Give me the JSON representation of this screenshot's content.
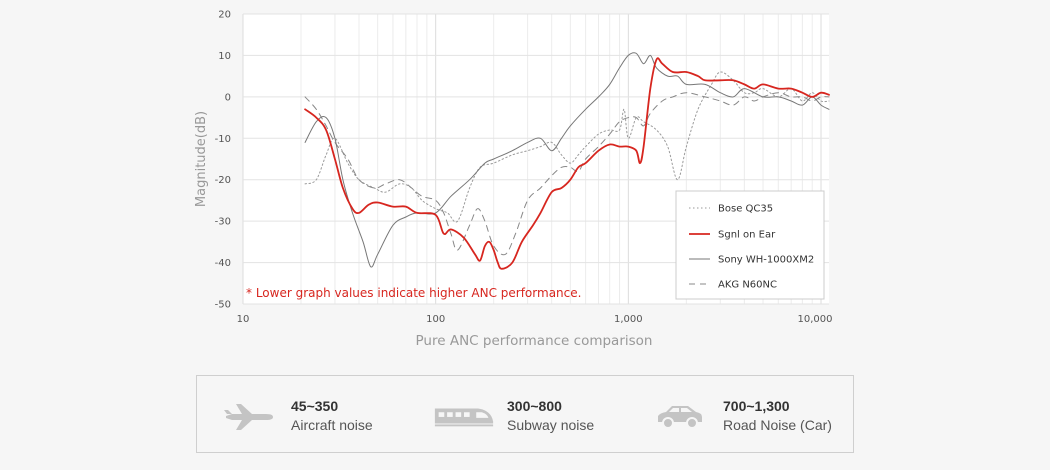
{
  "chart_data": {
    "type": "line",
    "title": "",
    "caption": "Pure ANC performance comparison",
    "xlabel": "",
    "ylabel": "Magnitude(dB)",
    "xscale": "log",
    "xlim": [
      10,
      11000
    ],
    "ylim": [
      -50,
      20
    ],
    "y_ticks": [
      20,
      10,
      0,
      -10,
      -20,
      -30,
      -40,
      -50
    ],
    "x_ticks": [
      10,
      100,
      1000,
      10000
    ],
    "x_tick_labels": [
      "10",
      "100",
      "1,000",
      "10,000"
    ],
    "grid": true,
    "legend_position": "bottom-right",
    "annotation": "* Lower graph values indicate higher ANC performance.",
    "series": [
      {
        "name": "Bose QC35",
        "style": "dotted",
        "color": "#9a9a9a",
        "points": [
          [
            21,
            -21
          ],
          [
            24,
            -20
          ],
          [
            27,
            -14
          ],
          [
            30,
            -10
          ],
          [
            35,
            -16
          ],
          [
            40,
            -20
          ],
          [
            48,
            -22
          ],
          [
            55,
            -23
          ],
          [
            65,
            -21
          ],
          [
            75,
            -22
          ],
          [
            85,
            -25
          ],
          [
            100,
            -27
          ],
          [
            115,
            -28
          ],
          [
            130,
            -30
          ],
          [
            150,
            -22
          ],
          [
            170,
            -17
          ],
          [
            200,
            -16
          ],
          [
            250,
            -14
          ],
          [
            300,
            -13
          ],
          [
            350,
            -12
          ],
          [
            400,
            -11
          ],
          [
            450,
            -14
          ],
          [
            500,
            -16
          ],
          [
            550,
            -14
          ],
          [
            600,
            -12
          ],
          [
            700,
            -9
          ],
          [
            800,
            -8
          ],
          [
            900,
            -8
          ],
          [
            950,
            -3
          ],
          [
            1000,
            -10
          ],
          [
            1100,
            -5
          ],
          [
            1200,
            -6
          ],
          [
            1400,
            -8
          ],
          [
            1600,
            -12
          ],
          [
            1800,
            -20
          ],
          [
            2000,
            -12
          ],
          [
            2300,
            -3
          ],
          [
            2700,
            3
          ],
          [
            3000,
            6
          ],
          [
            3500,
            4
          ],
          [
            4000,
            1
          ],
          [
            4500,
            1
          ],
          [
            5000,
            2
          ],
          [
            6000,
            0
          ],
          [
            7000,
            2
          ],
          [
            8000,
            -1
          ],
          [
            9000,
            1
          ],
          [
            10000,
            -1
          ],
          [
            11000,
            -1
          ]
        ]
      },
      {
        "name": "Sgnl on Ear",
        "style": "solid",
        "color": "#d7261f",
        "points": [
          [
            21,
            -3
          ],
          [
            24,
            -5
          ],
          [
            27,
            -8
          ],
          [
            30,
            -15
          ],
          [
            33,
            -22
          ],
          [
            37,
            -27
          ],
          [
            40,
            -28
          ],
          [
            45,
            -26
          ],
          [
            50,
            -25.5
          ],
          [
            60,
            -26.5
          ],
          [
            70,
            -26.5
          ],
          [
            80,
            -28
          ],
          [
            100,
            -28.5
          ],
          [
            110,
            -33
          ],
          [
            120,
            -32
          ],
          [
            140,
            -34
          ],
          [
            160,
            -38
          ],
          [
            170,
            -39.5
          ],
          [
            180,
            -36
          ],
          [
            190,
            -35
          ],
          [
            200,
            -37
          ],
          [
            210,
            -40
          ],
          [
            220,
            -41.5
          ],
          [
            250,
            -40
          ],
          [
            280,
            -35
          ],
          [
            320,
            -31
          ],
          [
            350,
            -28
          ],
          [
            400,
            -23
          ],
          [
            450,
            -22
          ],
          [
            500,
            -20
          ],
          [
            550,
            -17
          ],
          [
            600,
            -16
          ],
          [
            700,
            -13
          ],
          [
            800,
            -11.5
          ],
          [
            900,
            -12
          ],
          [
            1000,
            -12
          ],
          [
            1100,
            -13
          ],
          [
            1150,
            -16
          ],
          [
            1200,
            -12
          ],
          [
            1300,
            2
          ],
          [
            1400,
            9
          ],
          [
            1500,
            8
          ],
          [
            1700,
            6
          ],
          [
            2000,
            6
          ],
          [
            2300,
            5
          ],
          [
            2500,
            4
          ],
          [
            3000,
            4
          ],
          [
            3500,
            4
          ],
          [
            4000,
            3
          ],
          [
            4500,
            2
          ],
          [
            5000,
            3
          ],
          [
            6000,
            2
          ],
          [
            7000,
            2
          ],
          [
            8000,
            1
          ],
          [
            9000,
            0
          ],
          [
            10000,
            1
          ],
          [
            11000,
            0.5
          ]
        ]
      },
      {
        "name": "Sony WH-1000XM2",
        "style": "solid",
        "color": "#777777",
        "points": [
          [
            21,
            -11
          ],
          [
            24,
            -6
          ],
          [
            27,
            -5
          ],
          [
            30,
            -10
          ],
          [
            33,
            -20
          ],
          [
            37,
            -28
          ],
          [
            42,
            -35
          ],
          [
            46,
            -41
          ],
          [
            50,
            -38
          ],
          [
            60,
            -31
          ],
          [
            70,
            -29
          ],
          [
            80,
            -28
          ],
          [
            100,
            -28
          ],
          [
            120,
            -24
          ],
          [
            150,
            -20
          ],
          [
            180,
            -16
          ],
          [
            200,
            -15
          ],
          [
            250,
            -13
          ],
          [
            300,
            -11
          ],
          [
            350,
            -10
          ],
          [
            400,
            -13
          ],
          [
            450,
            -10
          ],
          [
            500,
            -7
          ],
          [
            600,
            -3
          ],
          [
            700,
            0
          ],
          [
            800,
            3
          ],
          [
            900,
            7
          ],
          [
            1000,
            10
          ],
          [
            1100,
            10.5
          ],
          [
            1200,
            8
          ],
          [
            1300,
            10
          ],
          [
            1400,
            7
          ],
          [
            1600,
            5
          ],
          [
            1800,
            5
          ],
          [
            2000,
            3
          ],
          [
            2500,
            3
          ],
          [
            3000,
            1
          ],
          [
            3500,
            0
          ],
          [
            4000,
            2
          ],
          [
            5000,
            0
          ],
          [
            6000,
            0
          ],
          [
            7000,
            -1
          ],
          [
            8000,
            -2
          ],
          [
            9000,
            0
          ],
          [
            10000,
            -2
          ],
          [
            11000,
            -3
          ]
        ]
      },
      {
        "name": "AKG N60NC",
        "style": "dashed",
        "color": "#888888",
        "points": [
          [
            21,
            0
          ],
          [
            24,
            -3
          ],
          [
            27,
            -7
          ],
          [
            30,
            -11
          ],
          [
            35,
            -15
          ],
          [
            40,
            -20
          ],
          [
            48,
            -22
          ],
          [
            55,
            -21
          ],
          [
            65,
            -20
          ],
          [
            75,
            -22
          ],
          [
            85,
            -24
          ],
          [
            100,
            -25
          ],
          [
            110,
            -28
          ],
          [
            120,
            -33
          ],
          [
            130,
            -37
          ],
          [
            150,
            -31
          ],
          [
            165,
            -27
          ],
          [
            180,
            -30
          ],
          [
            200,
            -36
          ],
          [
            230,
            -38
          ],
          [
            260,
            -33
          ],
          [
            300,
            -25
          ],
          [
            350,
            -22
          ],
          [
            400,
            -19
          ],
          [
            450,
            -17
          ],
          [
            500,
            -17
          ],
          [
            550,
            -18
          ],
          [
            600,
            -15
          ],
          [
            700,
            -12
          ],
          [
            800,
            -9
          ],
          [
            900,
            -6
          ],
          [
            1000,
            -5
          ],
          [
            1100,
            -5
          ],
          [
            1200,
            -7
          ],
          [
            1300,
            -4
          ],
          [
            1500,
            -1
          ],
          [
            1700,
            0
          ],
          [
            2000,
            1
          ],
          [
            2500,
            0
          ],
          [
            3000,
            -1
          ],
          [
            3500,
            -2
          ],
          [
            4000,
            0
          ],
          [
            4500,
            -1
          ],
          [
            5000,
            0
          ],
          [
            6000,
            1
          ],
          [
            7000,
            0
          ],
          [
            8000,
            0
          ],
          [
            9000,
            -1
          ],
          [
            10000,
            0
          ],
          [
            11000,
            0
          ]
        ]
      }
    ]
  },
  "noise_box": {
    "items": [
      {
        "range": "45~350",
        "label": "Aircraft noise",
        "icon": "airplane-icon"
      },
      {
        "range": "300~800",
        "label": "Subway noise",
        "icon": "train-icon"
      },
      {
        "range": "700~1,300",
        "label": "Road Noise (Car)",
        "icon": "car-icon"
      }
    ]
  },
  "colors": {
    "accent": "#d7261f",
    "background": "#f6f6f6",
    "icon": "#c4c4c4"
  }
}
